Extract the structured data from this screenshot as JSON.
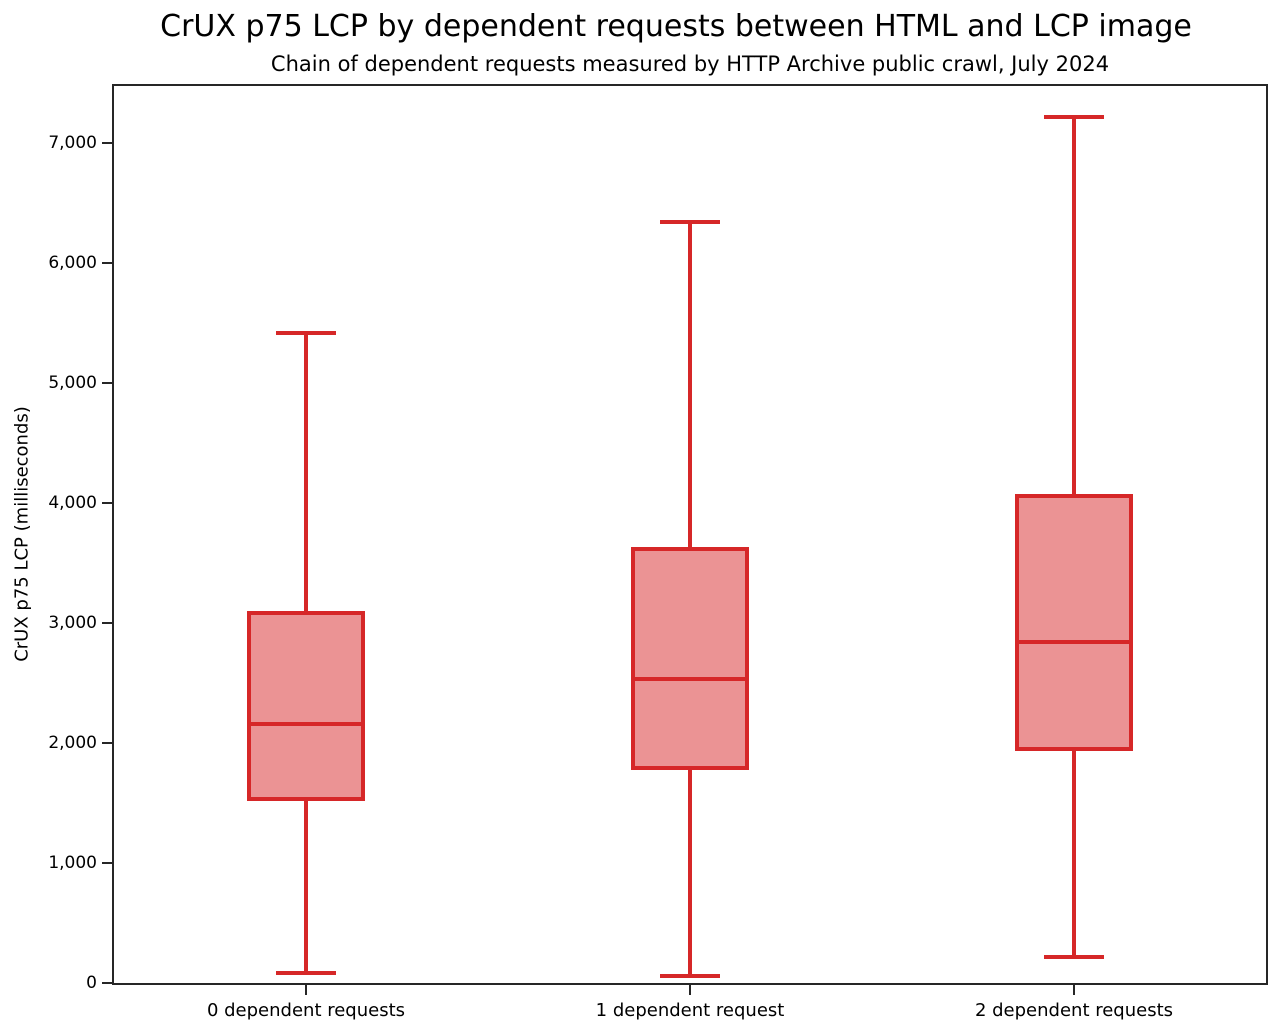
{
  "chart_data": {
    "type": "box",
    "title": "CrUX p75 LCP by dependent requests between HTML and LCP image",
    "subtitle": "Chain of dependent requests measured by HTTP Archive public crawl, July 2024",
    "xlabel": "",
    "ylabel": "CrUX p75 LCP (milliseconds)",
    "ylim": [
      0,
      7475
    ],
    "grid": false,
    "legend": null,
    "yticks": [
      {
        "value": 0,
        "label": "0"
      },
      {
        "value": 1000,
        "label": "1,000"
      },
      {
        "value": 2000,
        "label": "2,000"
      },
      {
        "value": 3000,
        "label": "3,000"
      },
      {
        "value": 4000,
        "label": "4,000"
      },
      {
        "value": 5000,
        "label": "5,000"
      },
      {
        "value": 6000,
        "label": "6,000"
      },
      {
        "value": 7000,
        "label": "7,000"
      }
    ],
    "categories": [
      "0 dependent requests",
      "1 dependent request",
      "2 dependent requests"
    ],
    "series": [
      {
        "whisker_low": 80,
        "q1": 1530,
        "median": 2160,
        "q3": 3080,
        "whisker_high": 5420
      },
      {
        "whisker_low": 60,
        "q1": 1790,
        "median": 2530,
        "q3": 3620,
        "whisker_high": 6340
      },
      {
        "whisker_low": 215,
        "q1": 1950,
        "median": 2840,
        "q3": 4060,
        "whisker_high": 7220
      }
    ],
    "colors": {
      "box_edge": "#d62728",
      "box_fill": "#eb9394",
      "axis": "#262626",
      "text": "#000000"
    }
  }
}
